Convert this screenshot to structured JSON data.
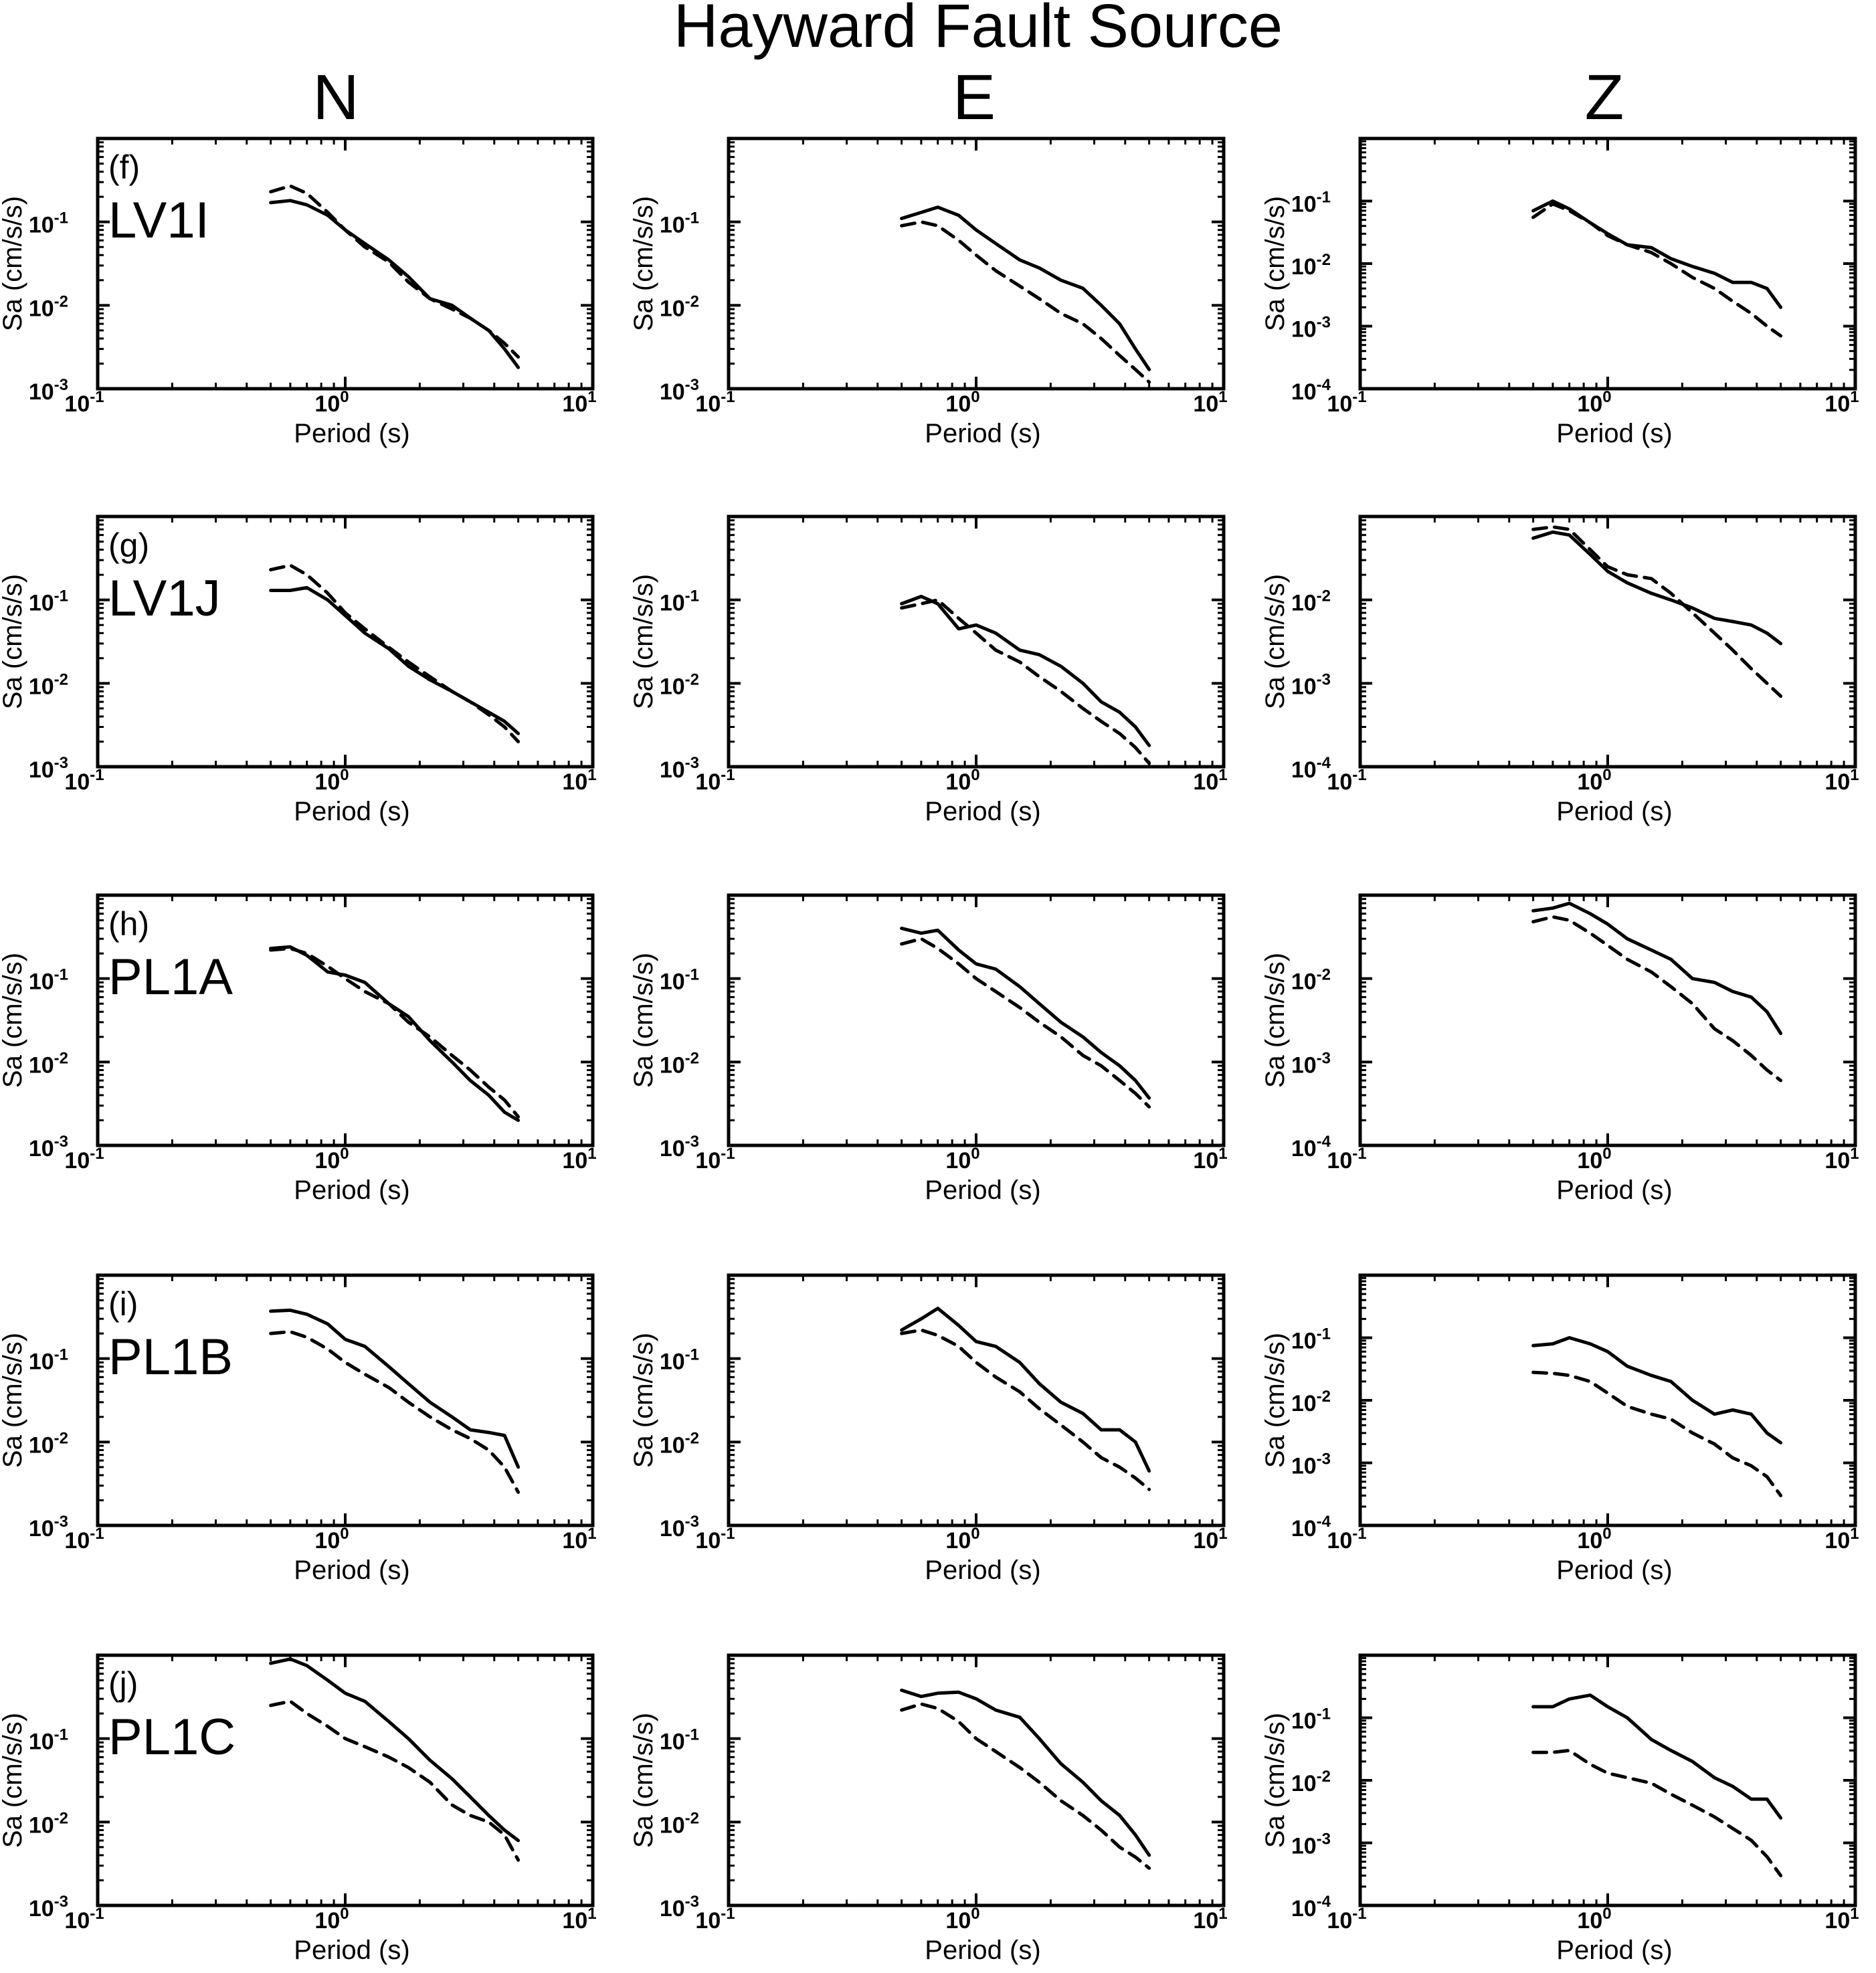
{
  "title": "Hayward Fault Source",
  "columns": [
    "N",
    "E",
    "Z"
  ],
  "rows": [
    {
      "letter": "(f)",
      "station": "LV1I"
    },
    {
      "letter": "(g)",
      "station": "LV1J"
    },
    {
      "letter": "(h)",
      "station": "PL1A"
    },
    {
      "letter": "(i)",
      "station": "PL1B"
    },
    {
      "letter": "(j)",
      "station": "PL1C"
    }
  ],
  "chart_data": {
    "type": "line",
    "title": "Hayward Fault Source",
    "xlabel": "Period (s)",
    "ylabel": "Sa (cm/s/s)",
    "x_scale": "log",
    "y_scale": "log",
    "xlim": [
      0.1,
      10
    ],
    "x_ticks": [
      {
        "base": "10",
        "exp": "-1"
      },
      {
        "base": "10",
        "exp": "0"
      },
      {
        "base": "10",
        "exp": "1"
      }
    ],
    "x_period": [
      0.5,
      0.6,
      0.7,
      0.85,
      1.0,
      1.2,
      1.5,
      1.8,
      2.2,
      2.7,
      3.2,
      3.8,
      4.4,
      5.0
    ],
    "series_styles": [
      {
        "line": "solid"
      },
      {
        "line": "dashed"
      }
    ],
    "panels": [
      {
        "row": 0,
        "col": 0,
        "ylim_exp": [
          -3,
          0
        ],
        "y_tick_exps": [
          "-3",
          "-2",
          "-1"
        ],
        "series": [
          {
            "values": [
              0.17,
              0.18,
              0.16,
              0.12,
              0.08,
              0.055,
              0.035,
              0.022,
              0.012,
              0.01,
              0.007,
              0.005,
              0.003,
              0.0018
            ]
          },
          {
            "values": [
              0.23,
              0.27,
              0.22,
              0.13,
              0.08,
              0.05,
              0.033,
              0.019,
              0.012,
              0.009,
              0.007,
              0.005,
              0.0035,
              0.0024
            ]
          }
        ]
      },
      {
        "row": 0,
        "col": 1,
        "ylim_exp": [
          -3,
          0
        ],
        "y_tick_exps": [
          "-3",
          "-2",
          "-1"
        ],
        "series": [
          {
            "values": [
              0.11,
              0.13,
              0.15,
              0.12,
              0.08,
              0.055,
              0.035,
              0.028,
              0.02,
              0.016,
              0.01,
              0.006,
              0.003,
              0.0017
            ]
          },
          {
            "values": [
              0.09,
              0.1,
              0.09,
              0.06,
              0.04,
              0.026,
              0.017,
              0.012,
              0.008,
              0.006,
              0.004,
              0.0025,
              0.0017,
              0.0012
            ]
          }
        ]
      },
      {
        "row": 0,
        "col": 2,
        "ylim_exp": [
          -4,
          0
        ],
        "y_tick_exps": [
          "-4",
          "-3",
          "-2",
          "-1"
        ],
        "series": [
          {
            "values": [
              0.07,
              0.1,
              0.075,
              0.045,
              0.03,
              0.02,
              0.018,
              0.012,
              0.009,
              0.007,
              0.005,
              0.005,
              0.004,
              0.002
            ]
          },
          {
            "values": [
              0.055,
              0.09,
              0.07,
              0.045,
              0.028,
              0.02,
              0.015,
              0.01,
              0.006,
              0.004,
              0.0025,
              0.0016,
              0.001,
              0.0007
            ]
          }
        ]
      },
      {
        "row": 1,
        "col": 0,
        "ylim_exp": [
          -3,
          0
        ],
        "y_tick_exps": [
          "-3",
          "-2",
          "-1"
        ],
        "series": [
          {
            "values": [
              0.13,
              0.13,
              0.14,
              0.1,
              0.065,
              0.04,
              0.026,
              0.016,
              0.011,
              0.008,
              0.006,
              0.0045,
              0.0035,
              0.0025
            ]
          },
          {
            "values": [
              0.23,
              0.26,
              0.2,
              0.12,
              0.07,
              0.045,
              0.027,
              0.018,
              0.012,
              0.008,
              0.006,
              0.0042,
              0.003,
              0.002
            ]
          }
        ]
      },
      {
        "row": 1,
        "col": 1,
        "ylim_exp": [
          -3,
          0
        ],
        "y_tick_exps": [
          "-3",
          "-2",
          "-1"
        ],
        "series": [
          {
            "values": [
              0.09,
              0.11,
              0.09,
              0.045,
              0.05,
              0.04,
              0.025,
              0.022,
              0.016,
              0.01,
              0.006,
              0.0045,
              0.003,
              0.0018
            ]
          },
          {
            "values": [
              0.08,
              0.09,
              0.1,
              0.06,
              0.04,
              0.025,
              0.018,
              0.012,
              0.008,
              0.005,
              0.0035,
              0.0025,
              0.0017,
              0.0011
            ]
          }
        ]
      },
      {
        "row": 1,
        "col": 2,
        "ylim_exp": [
          -4,
          -1
        ],
        "y_tick_exps": [
          "-4",
          "-3",
          "-2"
        ],
        "series": [
          {
            "values": [
              0.055,
              0.065,
              0.06,
              0.035,
              0.022,
              0.016,
              0.012,
              0.01,
              0.008,
              0.006,
              0.0055,
              0.005,
              0.004,
              0.003
            ]
          },
          {
            "values": [
              0.07,
              0.075,
              0.07,
              0.04,
              0.025,
              0.02,
              0.018,
              0.012,
              0.007,
              0.004,
              0.0025,
              0.0015,
              0.001,
              0.0007
            ]
          }
        ]
      },
      {
        "row": 2,
        "col": 0,
        "ylim_exp": [
          -3,
          0
        ],
        "y_tick_exps": [
          "-3",
          "-2",
          "-1"
        ],
        "series": [
          {
            "values": [
              0.23,
              0.24,
              0.19,
              0.12,
              0.11,
              0.09,
              0.05,
              0.035,
              0.018,
              0.01,
              0.006,
              0.004,
              0.0025,
              0.002
            ]
          },
          {
            "values": [
              0.22,
              0.23,
              0.2,
              0.14,
              0.1,
              0.07,
              0.05,
              0.03,
              0.02,
              0.012,
              0.008,
              0.005,
              0.0035,
              0.0022
            ]
          }
        ]
      },
      {
        "row": 2,
        "col": 1,
        "ylim_exp": [
          -3,
          0
        ],
        "y_tick_exps": [
          "-3",
          "-2",
          "-1"
        ],
        "series": [
          {
            "values": [
              0.4,
              0.35,
              0.38,
              0.22,
              0.15,
              0.13,
              0.08,
              0.05,
              0.03,
              0.02,
              0.013,
              0.009,
              0.006,
              0.0037
            ]
          },
          {
            "values": [
              0.26,
              0.3,
              0.23,
              0.15,
              0.1,
              0.07,
              0.045,
              0.03,
              0.02,
              0.012,
              0.009,
              0.006,
              0.0042,
              0.0029
            ]
          }
        ]
      },
      {
        "row": 2,
        "col": 2,
        "ylim_exp": [
          -4,
          -1
        ],
        "y_tick_exps": [
          "-4",
          "-3",
          "-2"
        ],
        "series": [
          {
            "values": [
              0.065,
              0.07,
              0.08,
              0.06,
              0.045,
              0.03,
              0.022,
              0.017,
              0.01,
              0.009,
              0.007,
              0.006,
              0.004,
              0.0022
            ]
          },
          {
            "values": [
              0.048,
              0.055,
              0.05,
              0.035,
              0.025,
              0.017,
              0.012,
              0.008,
              0.005,
              0.0025,
              0.0018,
              0.0012,
              0.0008,
              0.0006
            ]
          }
        ]
      },
      {
        "row": 3,
        "col": 0,
        "ylim_exp": [
          -3,
          0
        ],
        "y_tick_exps": [
          "-3",
          "-2",
          "-1"
        ],
        "series": [
          {
            "values": [
              0.37,
              0.38,
              0.34,
              0.26,
              0.17,
              0.14,
              0.08,
              0.05,
              0.03,
              0.02,
              0.014,
              0.013,
              0.012,
              0.005
            ]
          },
          {
            "values": [
              0.2,
              0.21,
              0.18,
              0.13,
              0.09,
              0.065,
              0.045,
              0.03,
              0.02,
              0.014,
              0.011,
              0.008,
              0.005,
              0.0025
            ]
          }
        ]
      },
      {
        "row": 3,
        "col": 1,
        "ylim_exp": [
          -3,
          0
        ],
        "y_tick_exps": [
          "-3",
          "-2",
          "-1"
        ],
        "series": [
          {
            "values": [
              0.22,
              0.3,
              0.4,
              0.25,
              0.16,
              0.14,
              0.09,
              0.05,
              0.03,
              0.022,
              0.014,
              0.014,
              0.01,
              0.0045
            ]
          },
          {
            "values": [
              0.2,
              0.22,
              0.19,
              0.14,
              0.09,
              0.06,
              0.04,
              0.025,
              0.016,
              0.01,
              0.0065,
              0.005,
              0.0037,
              0.0027
            ]
          }
        ]
      },
      {
        "row": 3,
        "col": 2,
        "ylim_exp": [
          -4,
          0
        ],
        "y_tick_exps": [
          "-4",
          "-3",
          "-2",
          "-1"
        ],
        "series": [
          {
            "values": [
              0.075,
              0.08,
              0.1,
              0.08,
              0.06,
              0.035,
              0.025,
              0.02,
              0.01,
              0.006,
              0.007,
              0.006,
              0.003,
              0.0021
            ]
          },
          {
            "values": [
              0.028,
              0.027,
              0.025,
              0.02,
              0.013,
              0.008,
              0.006,
              0.005,
              0.003,
              0.002,
              0.0012,
              0.0009,
              0.0006,
              0.0003
            ]
          }
        ]
      },
      {
        "row": 4,
        "col": 0,
        "ylim_exp": [
          -3,
          0
        ],
        "y_tick_exps": [
          "-3",
          "-2",
          "-1"
        ],
        "series": [
          {
            "values": [
              0.8,
              0.9,
              0.75,
              0.5,
              0.35,
              0.28,
              0.16,
              0.1,
              0.055,
              0.033,
              0.02,
              0.012,
              0.008,
              0.006
            ]
          },
          {
            "values": [
              0.25,
              0.28,
              0.2,
              0.14,
              0.1,
              0.08,
              0.06,
              0.045,
              0.03,
              0.016,
              0.012,
              0.01,
              0.007,
              0.0035
            ]
          }
        ]
      },
      {
        "row": 4,
        "col": 1,
        "ylim_exp": [
          -3,
          0
        ],
        "y_tick_exps": [
          "-3",
          "-2",
          "-1"
        ],
        "series": [
          {
            "values": [
              0.38,
              0.32,
              0.35,
              0.36,
              0.3,
              0.22,
              0.18,
              0.1,
              0.05,
              0.03,
              0.018,
              0.012,
              0.007,
              0.004
            ]
          },
          {
            "values": [
              0.22,
              0.26,
              0.23,
              0.16,
              0.1,
              0.07,
              0.045,
              0.03,
              0.018,
              0.012,
              0.008,
              0.005,
              0.0038,
              0.0028
            ]
          }
        ]
      },
      {
        "row": 4,
        "col": 2,
        "ylim_exp": [
          -4,
          0
        ],
        "y_tick_exps": [
          "-4",
          "-3",
          "-2",
          "-1"
        ],
        "series": [
          {
            "values": [
              0.15,
              0.15,
              0.2,
              0.23,
              0.15,
              0.1,
              0.045,
              0.03,
              0.02,
              0.011,
              0.008,
              0.005,
              0.005,
              0.0025
            ]
          },
          {
            "values": [
              0.028,
              0.028,
              0.03,
              0.018,
              0.013,
              0.011,
              0.009,
              0.006,
              0.004,
              0.0026,
              0.0017,
              0.0011,
              0.0006,
              0.0003
            ]
          }
        ]
      }
    ]
  }
}
